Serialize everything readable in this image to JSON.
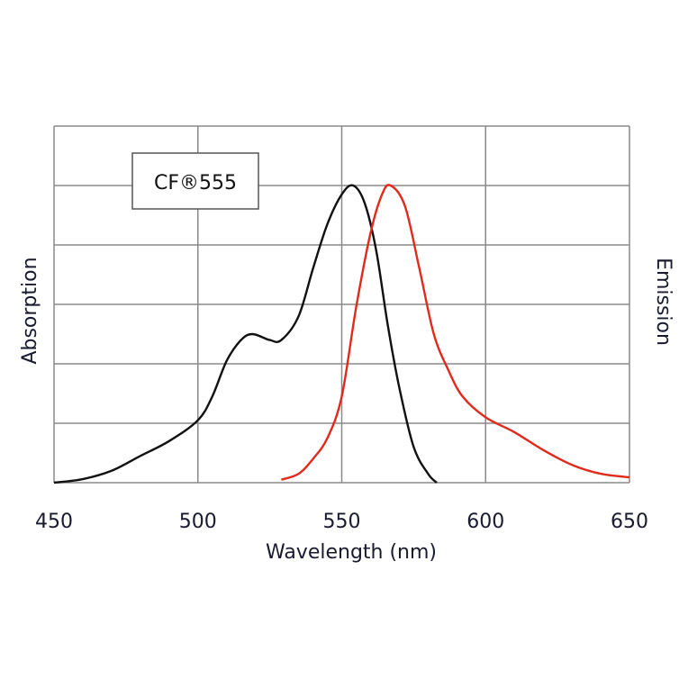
{
  "chart_data": {
    "type": "line",
    "title": "",
    "legend_label": "CF®555",
    "legend_placement": "top-left",
    "xlabel": "Wavelength (nm)",
    "ylabel_left": "Absorption",
    "ylabel_right": "Emission",
    "xlim": [
      450,
      650
    ],
    "ylim": [
      0,
      1.2
    ],
    "x_ticks": [
      "450",
      "500",
      "550",
      "600",
      "650"
    ],
    "x_tick_values": [
      450,
      500,
      550,
      600,
      650
    ],
    "y_gridlines": [
      0,
      0.2,
      0.4,
      0.6,
      0.8,
      1.0,
      1.2
    ],
    "grid": true,
    "series": [
      {
        "color": "#111111",
        "x": [
          450,
          460,
          470,
          480,
          490,
          500,
          505,
          510,
          515,
          519,
          525,
          529,
          535,
          540,
          545,
          550,
          554,
          558,
          562,
          566,
          570,
          575,
          580,
          583
        ],
        "y": [
          0,
          0.012,
          0.04,
          0.09,
          0.14,
          0.21,
          0.29,
          0.41,
          0.48,
          0.5,
          0.48,
          0.48,
          0.56,
          0.72,
          0.87,
          0.97,
          1.0,
          0.94,
          0.78,
          0.53,
          0.32,
          0.12,
          0.03,
          0
        ]
      },
      {
        "color": "#e02a1c",
        "x": [
          529,
          535,
          540,
          545,
          550,
          555,
          560,
          564,
          567,
          572,
          577,
          582,
          587,
          592,
          600,
          610,
          620,
          630,
          640,
          650
        ],
        "y": [
          0.01,
          0.03,
          0.08,
          0.15,
          0.29,
          0.59,
          0.84,
          0.97,
          1.0,
          0.93,
          0.72,
          0.5,
          0.38,
          0.29,
          0.22,
          0.17,
          0.11,
          0.06,
          0.03,
          0.018
        ]
      }
    ]
  }
}
